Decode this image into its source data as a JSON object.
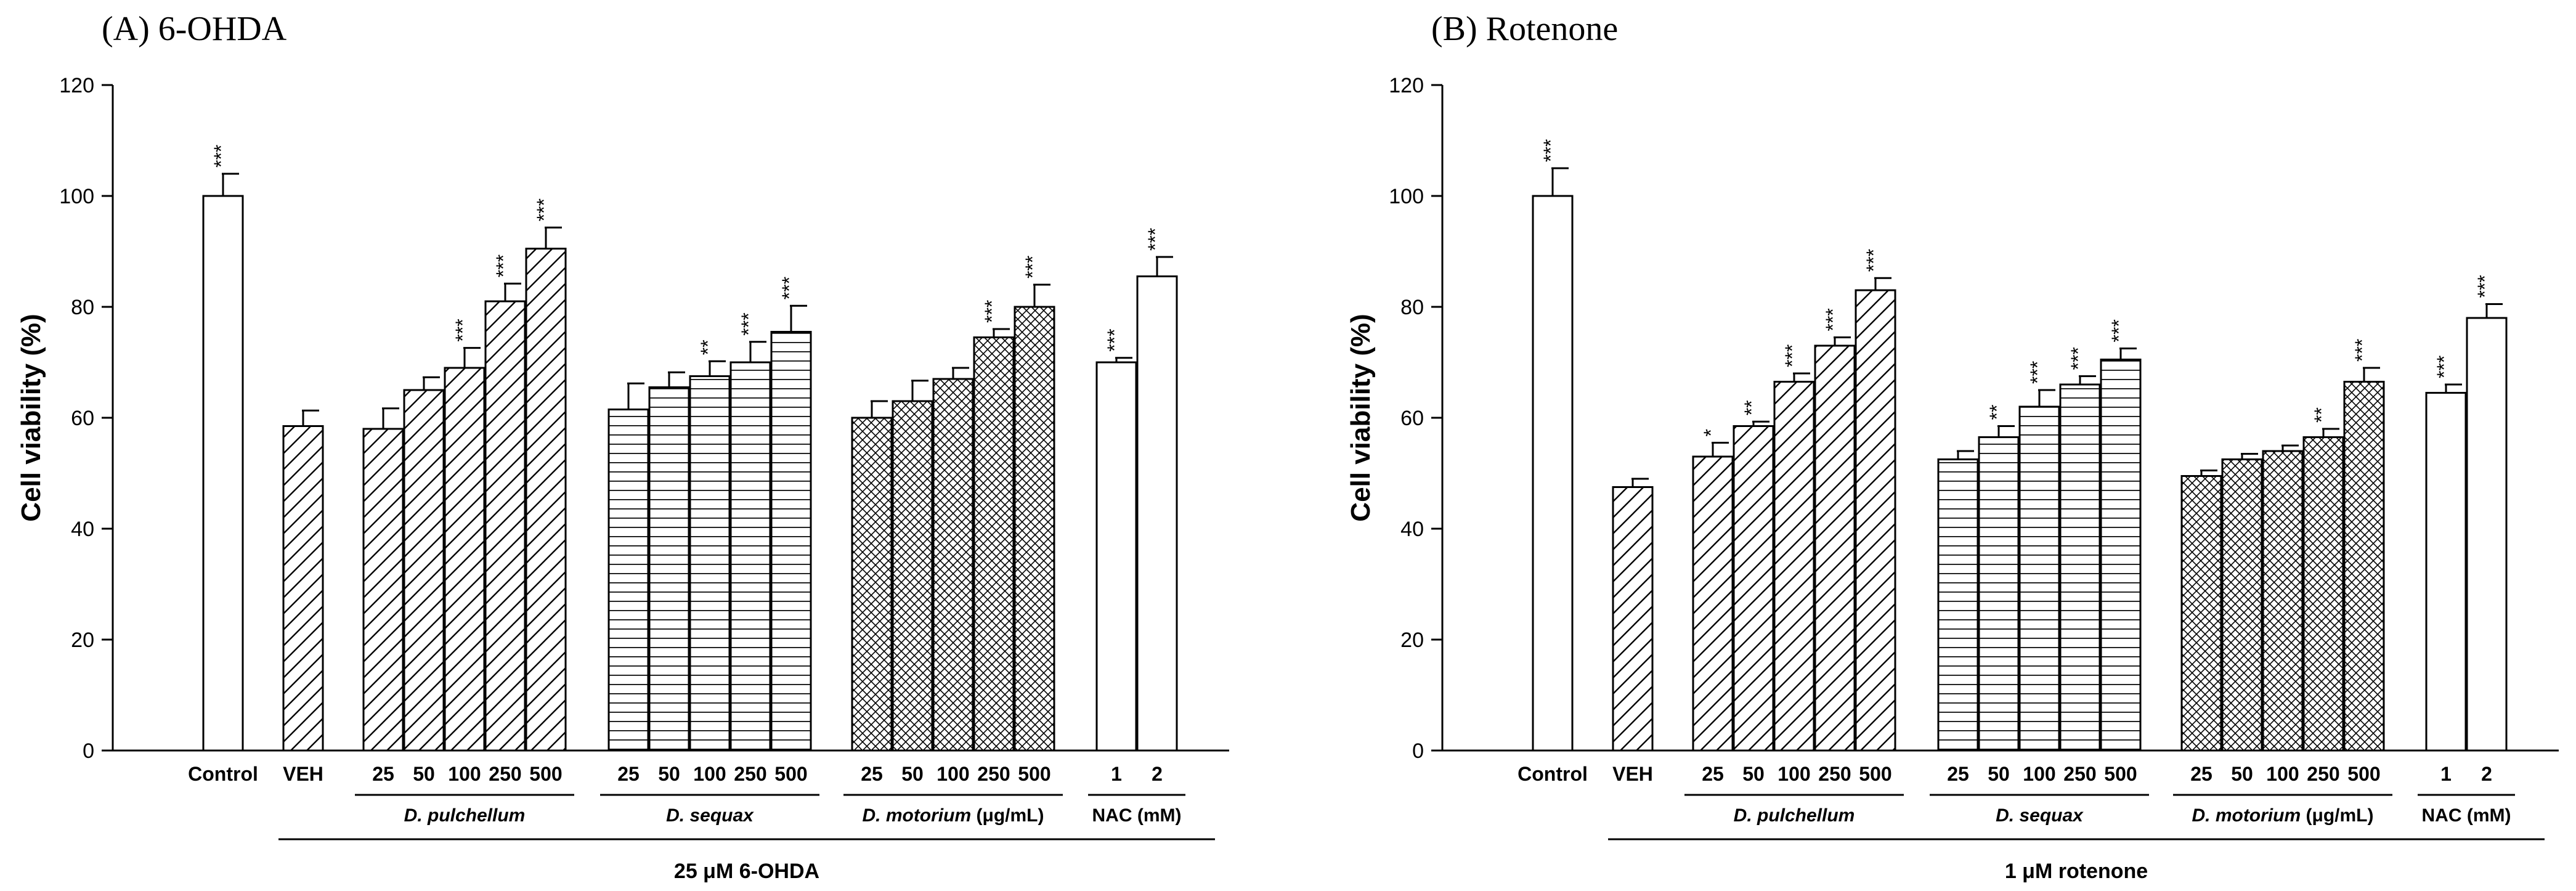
{
  "chart_data": [
    {
      "type": "bar",
      "title": "(A) 6-OHDA",
      "ylabel": "Cell viability (%)",
      "ylim": [
        0,
        120
      ],
      "yticks": [
        0,
        20,
        40,
        60,
        80,
        100,
        120
      ],
      "treatment": "25 μM 6-OHDA",
      "groups": [
        {
          "label": "",
          "bars": [
            {
              "x": "Control",
              "value": 100,
              "err": 4,
              "sig": "***",
              "pattern": "none"
            }
          ]
        },
        {
          "label": "",
          "bars": [
            {
              "x": "VEH",
              "value": 58.5,
              "err": 2.8,
              "sig": "",
              "pattern": "diag"
            }
          ]
        },
        {
          "label": "D. pulchellum",
          "bars": [
            {
              "x": "25",
              "value": 58,
              "err": 3.7,
              "sig": "",
              "pattern": "diag"
            },
            {
              "x": "50",
              "value": 65,
              "err": 2.3,
              "sig": "",
              "pattern": "diag"
            },
            {
              "x": "100",
              "value": 69,
              "err": 3.6,
              "sig": "***",
              "pattern": "diag"
            },
            {
              "x": "250",
              "value": 81,
              "err": 3.2,
              "sig": "***",
              "pattern": "diag"
            },
            {
              "x": "500",
              "value": 90.5,
              "err": 3.8,
              "sig": "***",
              "pattern": "diag"
            }
          ]
        },
        {
          "label": "D. sequax",
          "bars": [
            {
              "x": "25",
              "value": 61.5,
              "err": 4.7,
              "sig": "",
              "pattern": "horiz"
            },
            {
              "x": "50",
              "value": 65.5,
              "err": 2.7,
              "sig": "",
              "pattern": "horiz"
            },
            {
              "x": "100",
              "value": 67.5,
              "err": 2.7,
              "sig": "**",
              "pattern": "horiz"
            },
            {
              "x": "250",
              "value": 70,
              "err": 3.7,
              "sig": "***",
              "pattern": "horiz"
            },
            {
              "x": "500",
              "value": 75.5,
              "err": 4.7,
              "sig": "***",
              "pattern": "horiz"
            }
          ]
        },
        {
          "label": "D. motorium",
          "label_suffix": "(μg/mL)",
          "bars": [
            {
              "x": "25",
              "value": 60,
              "err": 3,
              "sig": "",
              "pattern": "cross"
            },
            {
              "x": "50",
              "value": 63,
              "err": 3.7,
              "sig": "",
              "pattern": "cross"
            },
            {
              "x": "100",
              "value": 67,
              "err": 2,
              "sig": "",
              "pattern": "cross"
            },
            {
              "x": "250",
              "value": 74.5,
              "err": 1.5,
              "sig": "***",
              "pattern": "cross"
            },
            {
              "x": "500",
              "value": 80,
              "err": 4,
              "sig": "***",
              "pattern": "cross"
            }
          ]
        },
        {
          "label": "NAC (mM)",
          "bars": [
            {
              "x": "1",
              "value": 70,
              "err": 0.8,
              "sig": "***",
              "pattern": "none"
            },
            {
              "x": "2",
              "value": 85.5,
              "err": 3.5,
              "sig": "***",
              "pattern": "none"
            }
          ]
        }
      ]
    },
    {
      "type": "bar",
      "title": "(B) Rotenone",
      "ylabel": "Cell viability (%)",
      "ylim": [
        0,
        120
      ],
      "yticks": [
        0,
        20,
        40,
        60,
        80,
        100,
        120
      ],
      "treatment": "1 μM rotenone",
      "groups": [
        {
          "label": "",
          "bars": [
            {
              "x": "Control",
              "value": 100,
              "err": 5,
              "sig": "***",
              "pattern": "none"
            }
          ]
        },
        {
          "label": "",
          "bars": [
            {
              "x": "VEH",
              "value": 47.5,
              "err": 1.5,
              "sig": "",
              "pattern": "diag"
            }
          ]
        },
        {
          "label": "D. pulchellum",
          "bars": [
            {
              "x": "25",
              "value": 53,
              "err": 2.5,
              "sig": "*",
              "pattern": "diag"
            },
            {
              "x": "50",
              "value": 58.5,
              "err": 0.8,
              "sig": "**",
              "pattern": "diag"
            },
            {
              "x": "100",
              "value": 66.5,
              "err": 1.5,
              "sig": "***",
              "pattern": "diag"
            },
            {
              "x": "250",
              "value": 73,
              "err": 1.5,
              "sig": "***",
              "pattern": "diag"
            },
            {
              "x": "500",
              "value": 83,
              "err": 2.2,
              "sig": "***",
              "pattern": "diag"
            }
          ]
        },
        {
          "label": "D. sequax",
          "bars": [
            {
              "x": "25",
              "value": 52.5,
              "err": 1.5,
              "sig": "",
              "pattern": "horiz"
            },
            {
              "x": "50",
              "value": 56.5,
              "err": 2,
              "sig": "**",
              "pattern": "horiz"
            },
            {
              "x": "100",
              "value": 62,
              "err": 3,
              "sig": "***",
              "pattern": "horiz"
            },
            {
              "x": "250",
              "value": 66,
              "err": 1.5,
              "sig": "***",
              "pattern": "horiz"
            },
            {
              "x": "500",
              "value": 70.5,
              "err": 2,
              "sig": "***",
              "pattern": "horiz"
            }
          ]
        },
        {
          "label": "D. motorium",
          "label_suffix": "(μg/mL)",
          "bars": [
            {
              "x": "25",
              "value": 49.5,
              "err": 1,
              "sig": "",
              "pattern": "cross"
            },
            {
              "x": "50",
              "value": 52.5,
              "err": 1,
              "sig": "",
              "pattern": "cross"
            },
            {
              "x": "100",
              "value": 54,
              "err": 1,
              "sig": "",
              "pattern": "cross"
            },
            {
              "x": "250",
              "value": 56.5,
              "err": 1.5,
              "sig": "**",
              "pattern": "cross"
            },
            {
              "x": "500",
              "value": 66.5,
              "err": 2.5,
              "sig": "***",
              "pattern": "cross"
            }
          ]
        },
        {
          "label": "NAC (mM)",
          "bars": [
            {
              "x": "1",
              "value": 64.5,
              "err": 1.5,
              "sig": "***",
              "pattern": "none"
            },
            {
              "x": "2",
              "value": 78,
              "err": 2.5,
              "sig": "***",
              "pattern": "none"
            }
          ]
        }
      ]
    }
  ]
}
